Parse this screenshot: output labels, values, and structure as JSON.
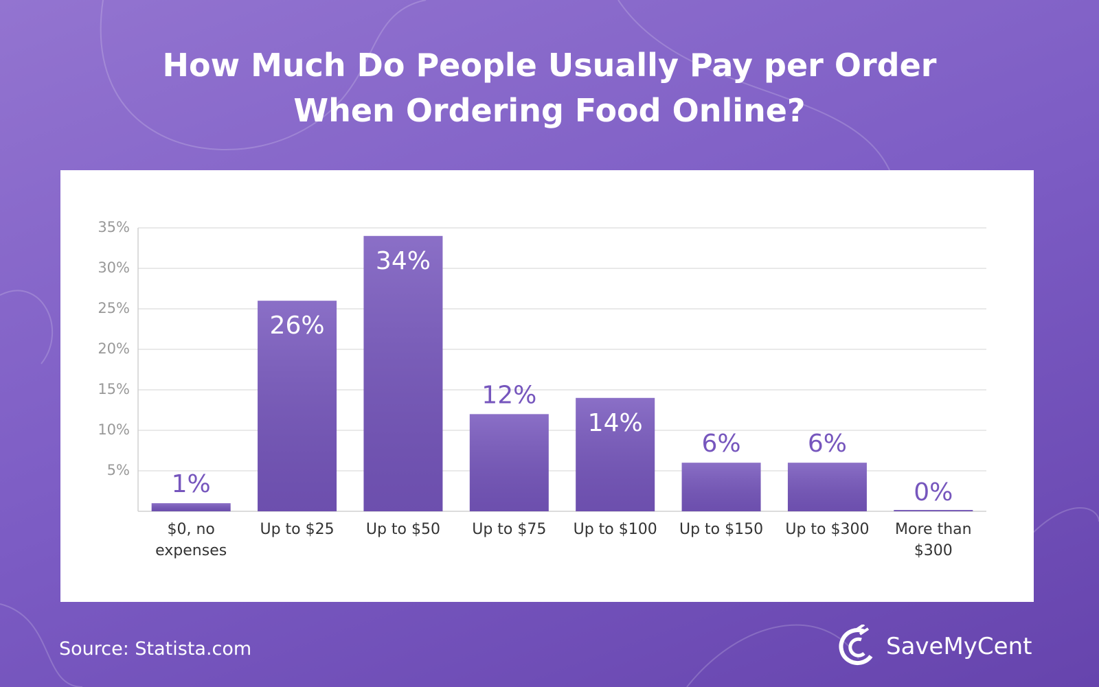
{
  "chart_data": {
    "type": "bar",
    "title": "How Much Do People Usually Pay per Order When Ordering Food Online?",
    "categories": [
      "$0, no expenses",
      "Up to $25",
      "Up to $50",
      "Up to $75",
      "Up to $100",
      "Up to $150",
      "Up to $300",
      "More than $300"
    ],
    "values": [
      1,
      26,
      34,
      12,
      14,
      6,
      6,
      0
    ],
    "value_labels": [
      "1%",
      "26%",
      "34%",
      "12%",
      "14%",
      "6%",
      "6%",
      "0%"
    ],
    "color": "#7656bd",
    "ylim": [
      0,
      35
    ],
    "yticks": [
      {
        "value": 5,
        "label": "5%"
      },
      {
        "value": 10,
        "label": "10%"
      },
      {
        "value": 15,
        "label": "15%"
      },
      {
        "value": 20,
        "label": "20%"
      },
      {
        "value": 25,
        "label": "25%"
      },
      {
        "value": 30,
        "label": "30%"
      },
      {
        "value": 35,
        "label": "35%"
      }
    ],
    "grid": true,
    "source": "Source: Statista.com",
    "brand": "SaveMyCent"
  }
}
